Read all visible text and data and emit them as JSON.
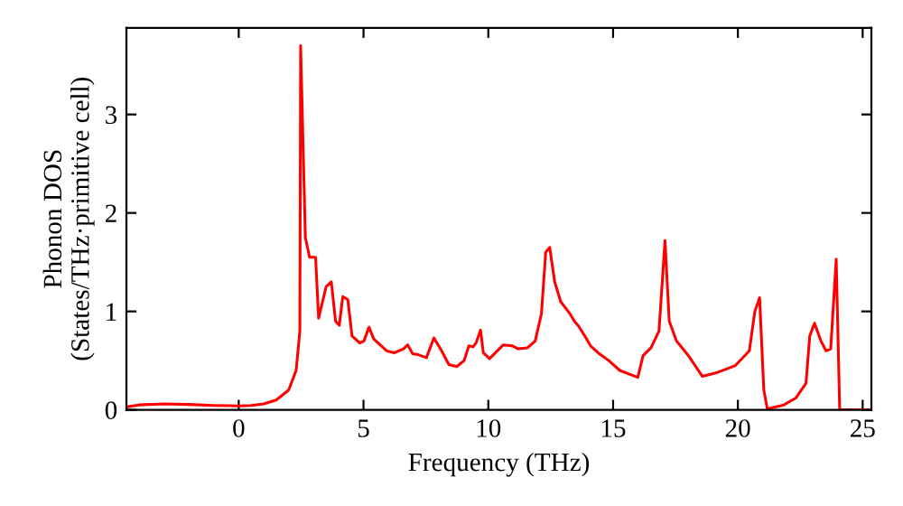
{
  "chart_data": {
    "type": "line",
    "xlabel": "Frequency (THz)",
    "ylabel": "Phonon DOS\n(States/THz·primitive cell)",
    "xlim": [
      -4.5,
      25.35
    ],
    "ylim": [
      0,
      3.88
    ],
    "xticks": [
      0,
      5,
      10,
      15,
      20,
      25
    ],
    "yticks": [
      0,
      1,
      2,
      3
    ],
    "grid": false,
    "legend": false,
    "marker": "none",
    "line_style": "solid",
    "x": [
      -4.5,
      -4,
      -3,
      -2,
      -1,
      0,
      0.5,
      1,
      1.5,
      2,
      2.3,
      2.45,
      2.48,
      2.67,
      2.84,
      3.08,
      3.2,
      3.5,
      3.71,
      3.88,
      4.03,
      4.17,
      4.37,
      4.54,
      4.85,
      5.02,
      5.22,
      5.41,
      5.92,
      6.24,
      6.6,
      6.77,
      6.97,
      7.2,
      7.52,
      7.82,
      8.13,
      8.42,
      8.74,
      9.03,
      9.22,
      9.39,
      9.51,
      9.69,
      9.8,
      10.05,
      10.6,
      10.97,
      11.2,
      11.57,
      11.88,
      12.13,
      12.3,
      12.46,
      12.66,
      12.9,
      13.26,
      13.45,
      13.62,
      13.94,
      14.1,
      14.4,
      14.83,
      15.27,
      15.68,
      15.99,
      16.2,
      16.52,
      16.84,
      17.08,
      17.25,
      17.54,
      18.02,
      18.58,
      19.18,
      19.9,
      20.46,
      20.68,
      20.87,
      21.04,
      21.18,
      21.84,
      22.32,
      22.73,
      22.88,
      23.07,
      23.33,
      23.53,
      23.72,
      23.94,
      24.08,
      25.35
    ],
    "series": [
      {
        "color": "#ff0000",
        "values": [
          0.03,
          0.05,
          0.06,
          0.055,
          0.045,
          0.04,
          0.045,
          0.06,
          0.1,
          0.2,
          0.4,
          0.8,
          3.7,
          1.75,
          1.55,
          1.55,
          0.93,
          1.25,
          1.3,
          0.9,
          0.86,
          1.15,
          1.12,
          0.75,
          0.68,
          0.7,
          0.84,
          0.72,
          0.6,
          0.58,
          0.62,
          0.66,
          0.57,
          0.56,
          0.53,
          0.73,
          0.6,
          0.46,
          0.44,
          0.5,
          0.65,
          0.64,
          0.68,
          0.81,
          0.58,
          0.52,
          0.66,
          0.65,
          0.62,
          0.63,
          0.7,
          0.98,
          1.6,
          1.65,
          1.3,
          1.1,
          0.98,
          0.9,
          0.85,
          0.72,
          0.65,
          0.58,
          0.5,
          0.4,
          0.36,
          0.33,
          0.55,
          0.63,
          0.8,
          1.72,
          0.9,
          0.7,
          0.55,
          0.34,
          0.38,
          0.45,
          0.6,
          1.0,
          1.14,
          0.2,
          0.01,
          0.05,
          0.12,
          0.27,
          0.75,
          0.88,
          0.7,
          0.6,
          0.62,
          1.53,
          0.0,
          0.0
        ]
      }
    ]
  }
}
